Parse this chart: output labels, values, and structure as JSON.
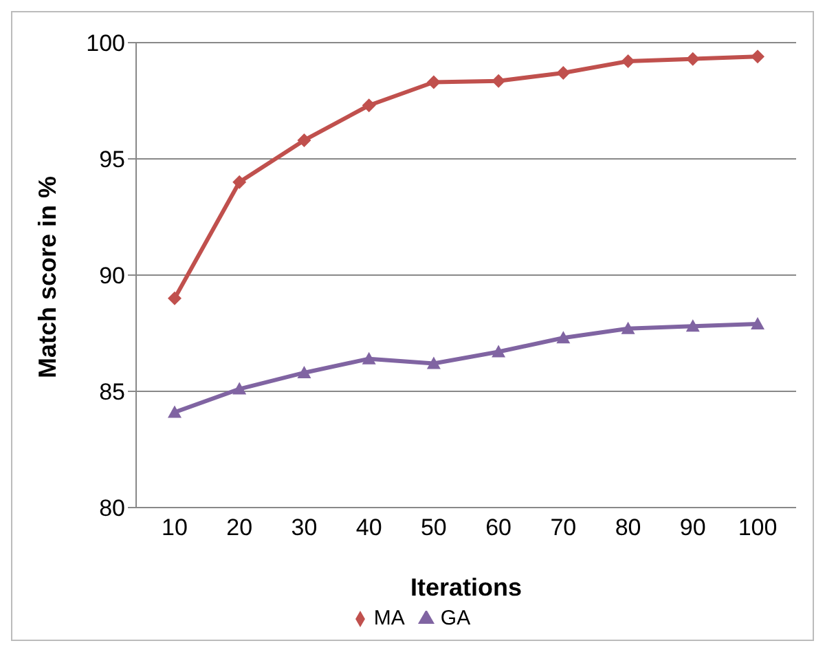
{
  "chart_data": {
    "type": "line",
    "xlabel": "Iterations",
    "ylabel": "Match score in %",
    "categories": [
      "10",
      "20",
      "30",
      "40",
      "50",
      "60",
      "70",
      "80",
      "90",
      "100"
    ],
    "series": [
      {
        "name": "MA",
        "color": "#c0504d",
        "marker": "diamond",
        "values": [
          89.0,
          94.0,
          95.8,
          97.3,
          98.3,
          98.35,
          98.7,
          99.2,
          99.3,
          99.4
        ]
      },
      {
        "name": "GA",
        "color": "#8064a2",
        "marker": "triangle",
        "values": [
          84.1,
          85.1,
          85.8,
          86.4,
          86.2,
          86.7,
          87.3,
          87.7,
          87.8,
          87.9
        ]
      }
    ],
    "ylim": [
      80,
      100
    ],
    "yticks": [
      80,
      85,
      90,
      95,
      100
    ],
    "grid": "y",
    "legend": "bottom"
  }
}
